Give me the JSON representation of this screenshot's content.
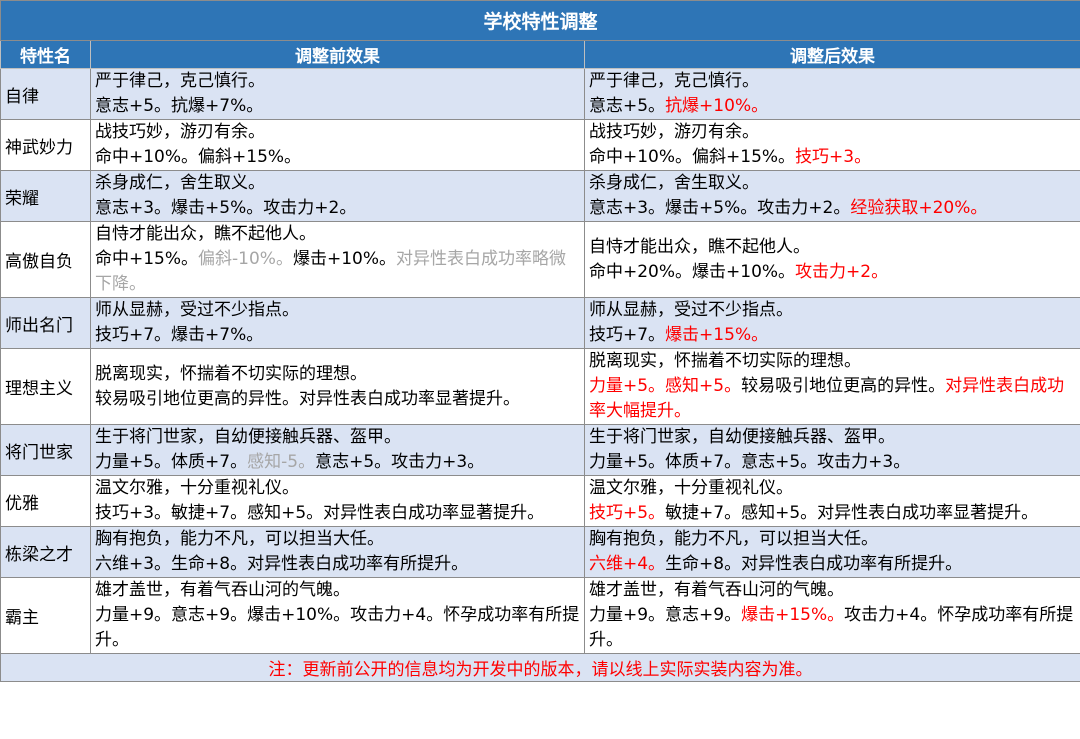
{
  "title": "学校特性调整",
  "headers": [
    "特性名",
    "调整前效果",
    "调整后效果"
  ],
  "rows": [
    {
      "name": "自律",
      "before": [
        [
          {
            "text": "严于律己，克己慎行。"
          }
        ],
        [
          {
            "text": "意志+5。抗爆+7%。"
          }
        ]
      ],
      "after": [
        [
          {
            "text": "严于律己，克己慎行。"
          }
        ],
        [
          {
            "text": "意志+5。"
          },
          {
            "text": "抗爆+10%。",
            "color": "#ff0000"
          }
        ]
      ]
    },
    {
      "name": "神武妙力",
      "before": [
        [
          {
            "text": "战技巧妙，游刃有余。"
          }
        ],
        [
          {
            "text": "命中+10%。偏斜+15%。"
          }
        ]
      ],
      "after": [
        [
          {
            "text": "战技巧妙，游刃有余。"
          }
        ],
        [
          {
            "text": "命中+10%。偏斜+15%。"
          },
          {
            "text": "技巧+3。",
            "color": "#ff0000"
          }
        ]
      ]
    },
    {
      "name": "荣耀",
      "before": [
        [
          {
            "text": "杀身成仁，舍生取义。"
          }
        ],
        [
          {
            "text": "意志+3。爆击+5%。攻击力+2。"
          }
        ]
      ],
      "after": [
        [
          {
            "text": "杀身成仁，舍生取义。"
          }
        ],
        [
          {
            "text": "意志+3。爆击+5%。攻击力+2。"
          },
          {
            "text": "经验获取+20%。",
            "color": "#ff0000"
          }
        ]
      ]
    },
    {
      "name": "高傲自负",
      "before": [
        [
          {
            "text": "自恃才能出众，瞧不起他人。"
          }
        ],
        [
          {
            "text": "命中+15%。"
          },
          {
            "text": "偏斜-10%。",
            "color": "#a6a6a6"
          },
          {
            "text": "爆击+10%。"
          },
          {
            "text": "对异性表白成功率略微下降。",
            "color": "#a6a6a6"
          }
        ]
      ],
      "after": [
        [
          {
            "text": "自恃才能出众，瞧不起他人。"
          }
        ],
        [
          {
            "text": "命中+20%。爆击+10%。"
          },
          {
            "text": "攻击力+2。",
            "color": "#ff0000"
          }
        ]
      ]
    },
    {
      "name": "师出名门",
      "before": [
        [
          {
            "text": "师从显赫，受过不少指点。"
          }
        ],
        [
          {
            "text": "技巧+7。爆击+7%。"
          }
        ]
      ],
      "after": [
        [
          {
            "text": "师从显赫，受过不少指点。"
          }
        ],
        [
          {
            "text": "技巧+7。"
          },
          {
            "text": "爆击+15%。",
            "color": "#ff0000"
          }
        ]
      ]
    },
    {
      "name": "理想主义",
      "before": [
        [
          {
            "text": "脱离现实，怀揣着不切实际的理想。"
          }
        ],
        [
          {
            "text": "较易吸引地位更高的异性。对异性表白成功率显著提升。"
          }
        ]
      ],
      "after": [
        [
          {
            "text": "脱离现实，怀揣着不切实际的理想。"
          }
        ],
        [
          {
            "text": "力量+5。感知+5。",
            "color": "#ff0000"
          },
          {
            "text": "较易吸引地位更高的异性。"
          },
          {
            "text": "对异性表白成功率大幅提升。",
            "color": "#ff0000"
          }
        ]
      ]
    },
    {
      "name": "将门世家",
      "before": [
        [
          {
            "text": "生于将门世家，自幼便接触兵器、盔甲。"
          }
        ],
        [
          {
            "text": "力量+5。体质+7。"
          },
          {
            "text": "感知-5。",
            "color": "#a6a6a6"
          },
          {
            "text": "意志+5。攻击力+3。"
          }
        ]
      ],
      "after": [
        [
          {
            "text": "生于将门世家，自幼便接触兵器、盔甲。"
          }
        ],
        [
          {
            "text": "力量+5。体质+7。意志+5。攻击力+3。"
          }
        ]
      ]
    },
    {
      "name": "优雅",
      "before": [
        [
          {
            "text": "温文尔雅，十分重视礼仪。"
          }
        ],
        [
          {
            "text": "技巧+3。敏捷+7。感知+5。对异性表白成功率显著提升。"
          }
        ]
      ],
      "after": [
        [
          {
            "text": "温文尔雅，十分重视礼仪。"
          }
        ],
        [
          {
            "text": "技巧+5。",
            "color": "#ff0000"
          },
          {
            "text": "敏捷+7。感知+5。对异性表白成功率显著提升。"
          }
        ]
      ]
    },
    {
      "name": "栋梁之才",
      "before": [
        [
          {
            "text": "胸有抱负，能力不凡，可以担当大任。"
          }
        ],
        [
          {
            "text": "六维+3。生命+8。对异性表白成功率有所提升。"
          }
        ]
      ],
      "after": [
        [
          {
            "text": "胸有抱负，能力不凡，可以担当大任。"
          }
        ],
        [
          {
            "text": "六维+4。",
            "color": "#ff0000"
          },
          {
            "text": "生命+8。对异性表白成功率有所提升。"
          }
        ]
      ]
    },
    {
      "name": "霸主",
      "before": [
        [
          {
            "text": "雄才盖世，有着气吞山河的气魄。"
          }
        ],
        [
          {
            "text": "力量+9。意志+9。爆击+10%。攻击力+4。怀孕成功率有所提升。"
          }
        ]
      ],
      "after": [
        [
          {
            "text": "雄才盖世，有着气吞山河的气魄。"
          }
        ],
        [
          {
            "text": "力量+9。意志+9。"
          },
          {
            "text": "爆击+15%。",
            "color": "#ff0000"
          },
          {
            "text": "攻击力+4。怀孕成功率有所提升。"
          }
        ]
      ]
    }
  ],
  "note": "注：更新前公开的信息均为开发中的版本，请以线上实际实装内容为准。"
}
